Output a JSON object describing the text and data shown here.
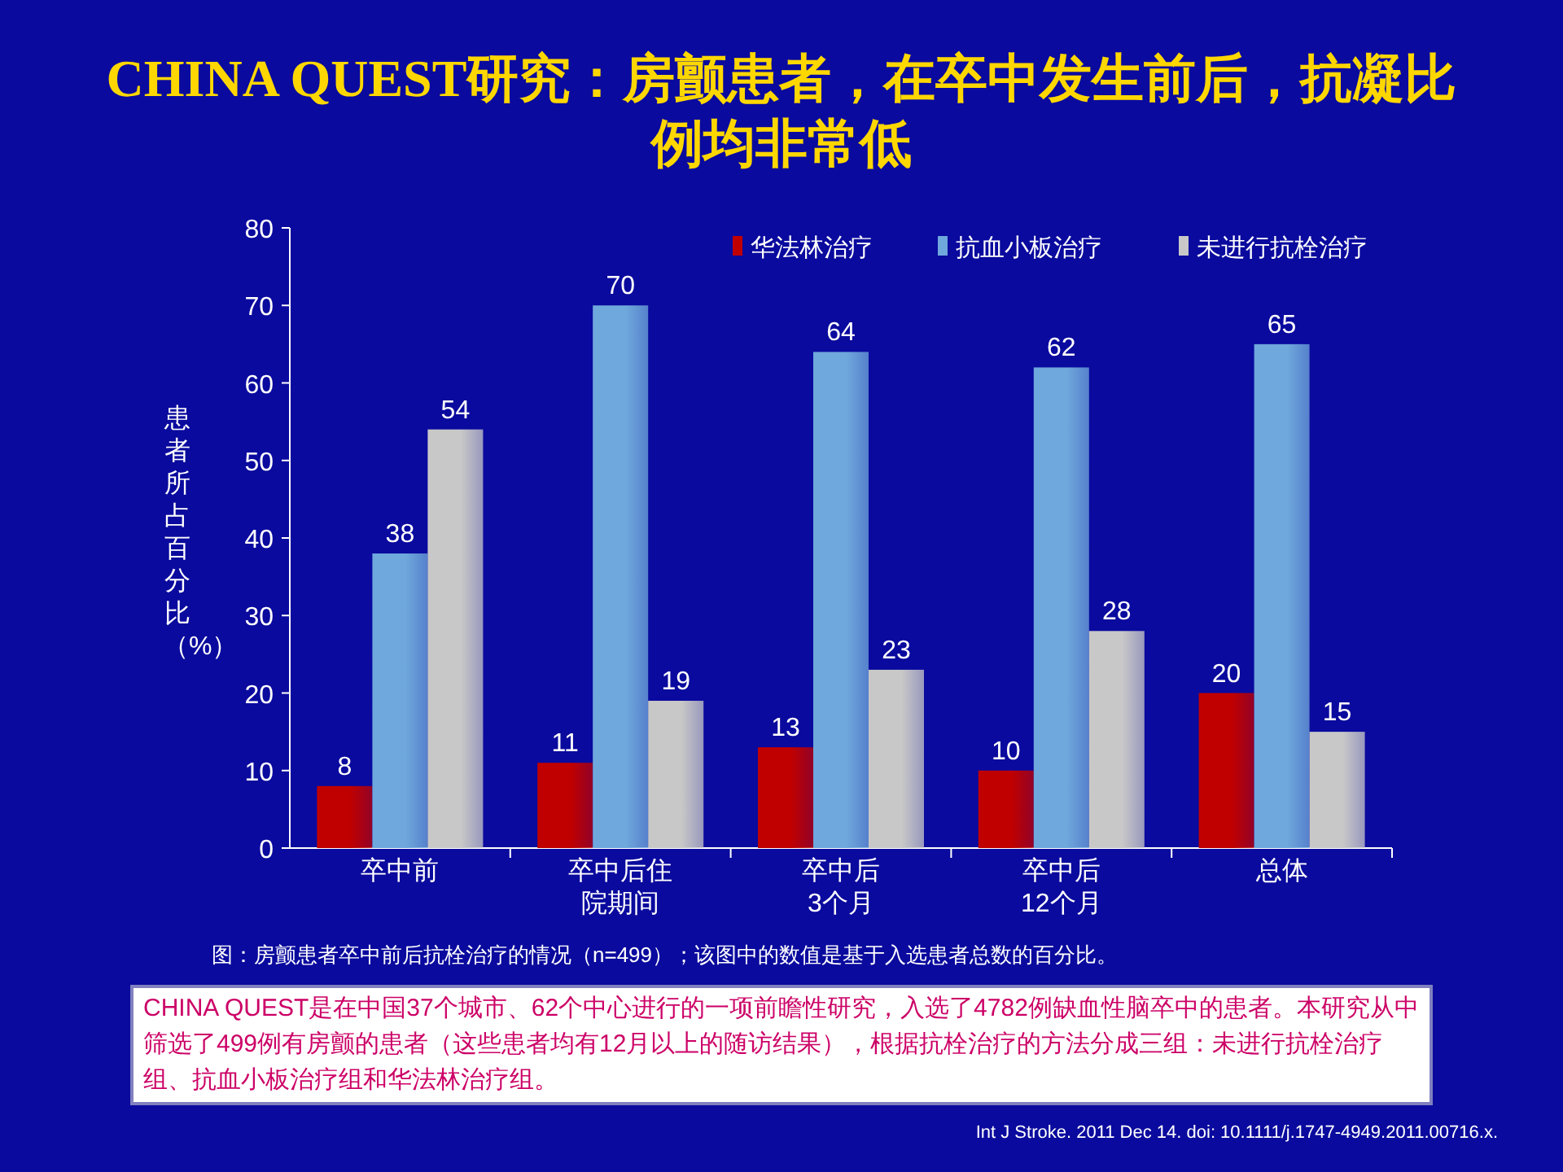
{
  "chart_data": {
    "type": "bar",
    "title": "CHINA QUEST研究：房颤患者，在卒中发生前后，抗凝比例均非常低",
    "ylabel": "患者所占百分比（%）",
    "categories": [
      "卒中前",
      "卒中后住院期间",
      "卒中后3个月",
      "卒中后12个月",
      "总体"
    ],
    "series": [
      {
        "name": "华法林治疗",
        "color": "#c00000",
        "values": [
          8,
          11,
          13,
          10,
          20
        ]
      },
      {
        "name": "抗血小板治疗",
        "color": "#6fa8dc",
        "values": [
          38,
          70,
          64,
          62,
          65
        ]
      },
      {
        "name": "未进行抗栓治疗",
        "color": "#c8c8c8",
        "values": [
          54,
          19,
          23,
          28,
          15
        ]
      }
    ],
    "ylim": [
      0,
      80
    ],
    "yticks": [
      0,
      10,
      20,
      30,
      40,
      50,
      60,
      70,
      80
    ],
    "grid": false,
    "legend": "top right",
    "data_labels": true,
    "annotations": [
      "图：房颤患者卒中前后抗栓治疗的情况（n=499）；该图中的数值是基于入选患者总数的百分比。",
      "CHINA QUEST是在中国37个城市、62个中心进行的一项前瞻性研究，入选了4782例缺血性脑卒中的患者。本研究从中筛选了499例有房颤的患者（这些患者均有12月以上的随访结果），根据抗栓治疗的方法分成三组：未进行抗栓治疗组、抗血小板治疗组和华法林治疗组。",
      "Int J Stroke. 2011 Dec 14. doi: 10.1111/j.1747-4949.2011.00716.x."
    ]
  }
}
